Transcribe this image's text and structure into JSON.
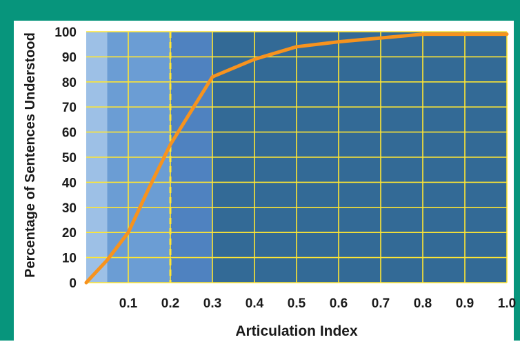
{
  "chart_data": {
    "type": "line",
    "xlabel": "Articulation Index",
    "ylabel": "Percentage of Sentences Understood",
    "xlim": [
      0,
      1.0
    ],
    "ylim": [
      0,
      100
    ],
    "x_ticks": [
      "0.1",
      "0.2",
      "0.3",
      "0.4",
      "0.5",
      "0.6",
      "0.7",
      "0.8",
      "0.9",
      "1.0"
    ],
    "y_ticks": [
      "0",
      "10",
      "20",
      "30",
      "40",
      "50",
      "60",
      "70",
      "80",
      "90",
      "100"
    ],
    "grid": true,
    "series": [
      {
        "x": [
          0.0,
          0.05,
          0.1,
          0.15,
          0.2,
          0.3,
          0.4,
          0.5,
          0.6,
          0.7,
          0.8,
          0.9,
          1.0
        ],
        "y": [
          0,
          9,
          20,
          38,
          55,
          82,
          89,
          94,
          96,
          97.5,
          99,
          99,
          99
        ]
      }
    ],
    "shaded_regions": [
      {
        "x": [
          0.0,
          0.05
        ]
      },
      {
        "x": [
          0.05,
          0.2
        ]
      },
      {
        "x": [
          0.2,
          0.3
        ]
      },
      {
        "x": [
          0.3,
          1.0
        ]
      }
    ],
    "reference_line": {
      "x": 0.2,
      "style": "dashed"
    }
  },
  "colors": {
    "frame": "#07957c",
    "region_1": "#9dc0e6",
    "region_2": "#6b9dd4",
    "region_3": "#4f82c0",
    "region_4": "#336a96",
    "grid": "#ffe633",
    "reference_line": "#ffe633",
    "curve": "#f7931e"
  }
}
